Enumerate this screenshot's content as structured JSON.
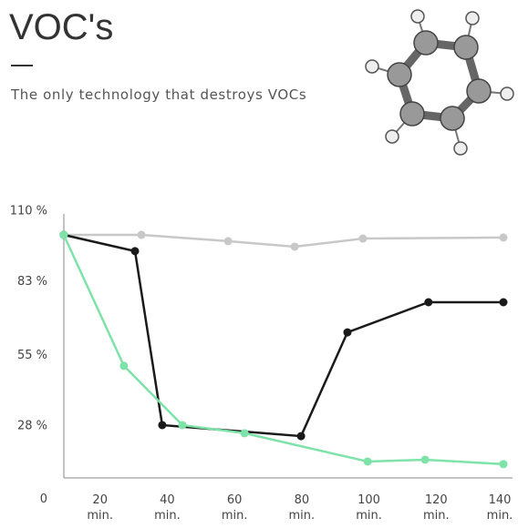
{
  "title": "VOC's",
  "subtitle": "The only technology that destroys VOCs",
  "chart_data": {
    "type": "line",
    "xlim": [
      0,
      140
    ],
    "ylim": [
      0,
      110
    ],
    "xticks": [
      {
        "value": 20,
        "label": "20 min."
      },
      {
        "value": 40,
        "label": "40 min."
      },
      {
        "value": 60,
        "label": "60 min."
      },
      {
        "value": 80,
        "label": "80 min."
      },
      {
        "value": 100,
        "label": "100 min."
      },
      {
        "value": 120,
        "label": "120 min."
      },
      {
        "value": 140,
        "label": "140 min."
      }
    ],
    "yticks": [
      0,
      {
        "value": 28,
        "label": "28 %"
      },
      {
        "value": 55,
        "label": "55 %"
      },
      {
        "value": 83,
        "label": "83 %"
      },
      {
        "value": 110,
        "label": "110 %"
      }
    ],
    "series": [
      {
        "color": "#c8c8c8",
        "x": [
          9.2,
          32.3,
          58.1,
          77.9,
          98.2,
          140
        ],
        "values": [
          102,
          102,
          99.6,
          97.5,
          100.6,
          101
        ]
      },
      {
        "color": "#1a1a1a",
        "x": [
          9.2,
          30.4,
          38.5,
          79.8,
          93.6,
          117.7,
          140
        ],
        "values": [
          102,
          95.8,
          29.4,
          25.2,
          64.8,
          76.3,
          76.3
        ]
      },
      {
        "color": "#7de3a8",
        "x": [
          9.2,
          27.1,
          44.5,
          63,
          99.6,
          116.7,
          140
        ],
        "values": [
          102,
          52,
          29.4,
          26.3,
          15.5,
          16.2,
          14.5
        ]
      }
    ]
  }
}
